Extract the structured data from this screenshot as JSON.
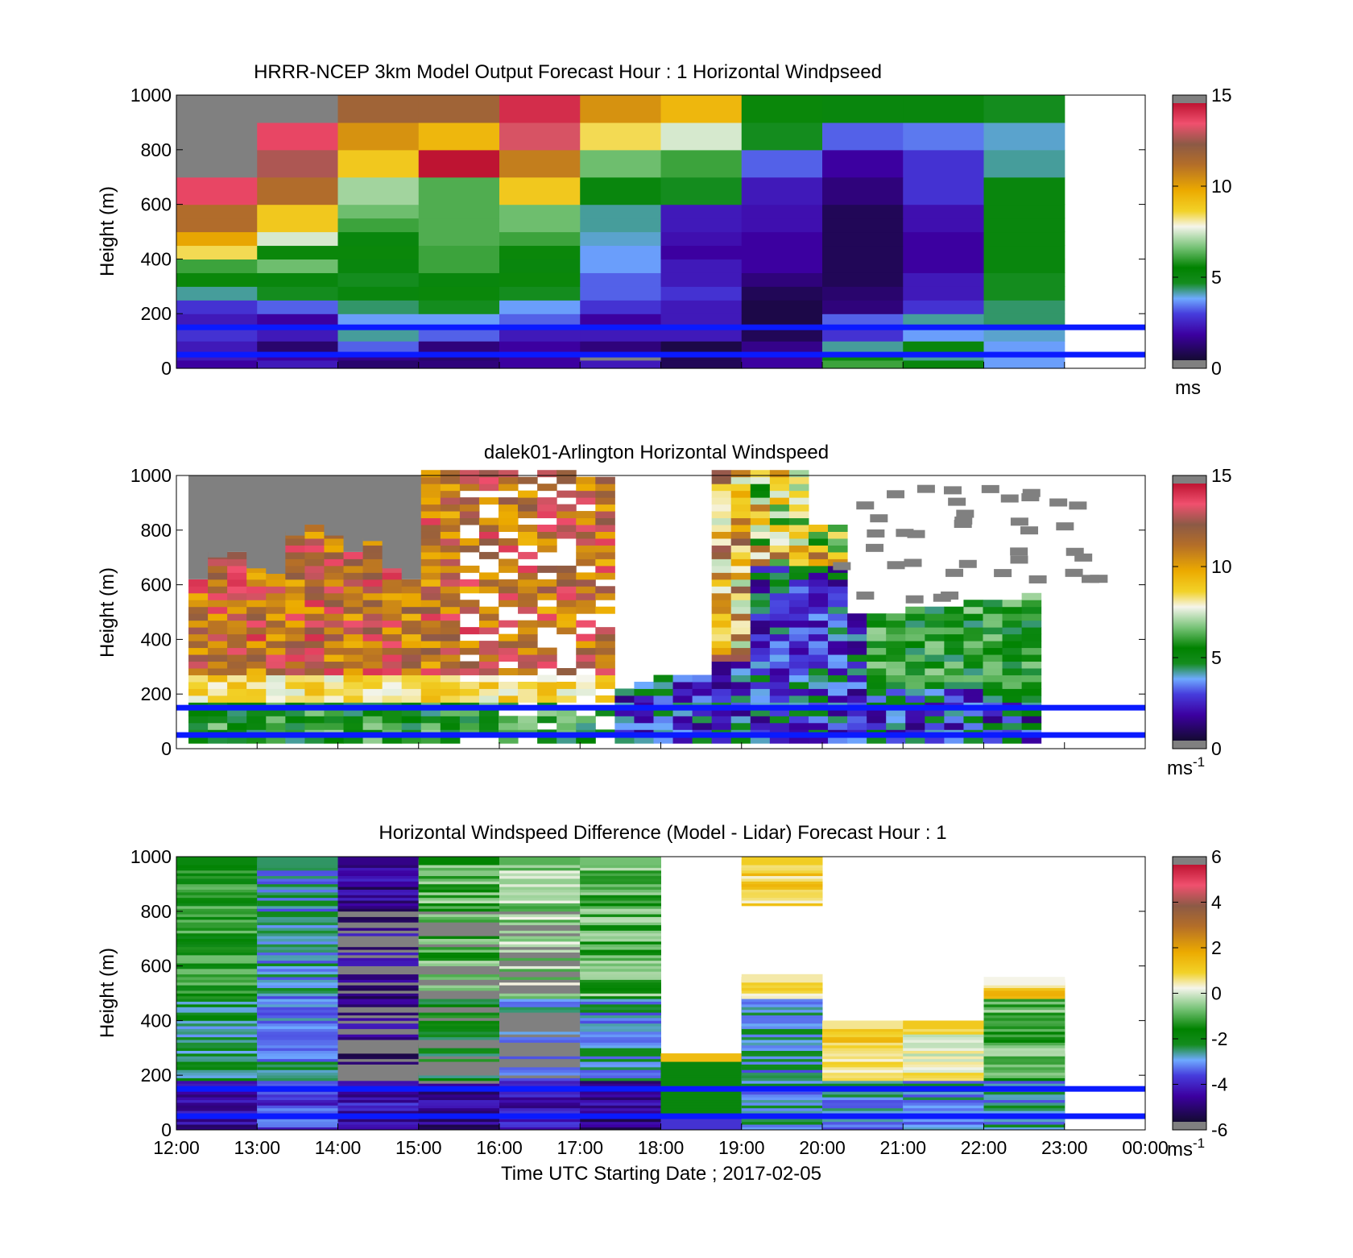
{
  "figure": {
    "xlabel": "Time UTC  Starting Date ; 2017-02-05",
    "x_ticks": [
      "12:00",
      "13:00",
      "14:00",
      "15:00",
      "16:00",
      "17:00",
      "18:00",
      "19:00",
      "20:00",
      "21:00",
      "22:00",
      "23:00",
      "00:00"
    ],
    "reference_heights_m": [
      150,
      50
    ],
    "reference_line_color": "#0a1aff"
  },
  "chart_data": [
    {
      "type": "heatmap",
      "title": "HRRR-NCEP 3km Model Output   Forecast Hour : 1 Horizontal Windpseed",
      "ylabel": "Height (m)",
      "ylim": [
        0,
        1000
      ],
      "y_ticks": [
        "1000",
        "800",
        "600",
        "400",
        "200",
        "0"
      ],
      "colorbar": {
        "range": [
          0,
          15
        ],
        "ticks": [
          "15",
          "10",
          "5",
          "0"
        ],
        "unit": "ms",
        "unit_sup": ""
      },
      "x": [
        "12:00",
        "13:00",
        "14:00",
        "15:00",
        "16:00",
        "17:00",
        "18:00",
        "19:00",
        "20:00",
        "21:00",
        "22:00"
      ],
      "y_edges": [
        0,
        30,
        60,
        100,
        150,
        200,
        250,
        300,
        350,
        400,
        450,
        500,
        550,
        600,
        700,
        800,
        900,
        1000
      ],
      "z": [
        [
          1.5,
          2,
          0.8,
          1,
          1.5,
          2,
          0.5,
          1.5,
          6,
          5,
          3.5
        ],
        [
          2,
          1.5,
          1.2,
          0.8,
          1.5,
          0,
          0.5,
          1.5,
          5,
          4,
          3.5
        ],
        [
          2,
          0.8,
          3,
          1,
          1.5,
          1,
          0.3,
          1.2,
          4,
          5,
          3.5
        ],
        [
          2.5,
          2,
          4,
          3,
          2,
          2,
          2,
          0.5,
          2.5,
          3.5,
          3.8
        ],
        [
          2,
          1.5,
          3.5,
          3.5,
          3,
          1.5,
          2,
          0.3,
          3,
          4,
          4.2
        ],
        [
          2.5,
          3,
          4.2,
          4.5,
          3.5,
          2.5,
          2,
          0.3,
          1,
          2.5,
          4.2
        ],
        [
          4,
          4.5,
          5,
          5.5,
          4.5,
          3,
          2.5,
          0.5,
          0.8,
          2,
          4.5
        ],
        [
          5.5,
          5,
          4.5,
          5,
          5.5,
          3,
          2,
          1,
          0.5,
          2,
          4.5
        ],
        [
          6,
          6.5,
          5,
          6,
          5,
          3.5,
          2,
          1.5,
          0.5,
          1.5,
          5
        ],
        [
          8.5,
          5.5,
          5.5,
          6,
          5.5,
          3.5,
          1.5,
          1.5,
          0.5,
          1.5,
          5
        ],
        [
          10,
          7.5,
          5,
          6.2,
          6,
          3.8,
          1.8,
          1.5,
          0.5,
          1.5,
          5
        ],
        [
          11.5,
          9,
          6,
          6.2,
          6.5,
          4,
          2,
          1.8,
          0.5,
          1.8,
          5
        ],
        [
          11.5,
          9,
          6.5,
          6.2,
          6.5,
          4,
          2,
          1.8,
          0.5,
          1.8,
          5
        ],
        [
          14,
          11.5,
          7,
          6.2,
          9,
          5,
          4.5,
          2,
          1,
          2.5,
          5
        ],
        [
          0,
          13,
          9,
          15,
          11,
          6.5,
          6,
          3,
          1.5,
          2.5,
          4
        ],
        [
          0,
          14,
          10.5,
          9.5,
          13.5,
          8.5,
          7.5,
          4.5,
          3,
          3.2,
          3.8
        ],
        [
          0,
          0,
          12,
          12,
          14.5,
          10.5,
          9.5,
          5.5,
          5,
          5,
          4.5
        ]
      ]
    },
    {
      "type": "heatmap",
      "title": "dalek01-Arlington  Horizontal Windspeed",
      "ylabel": "Height (m)",
      "ylim": [
        0,
        1000
      ],
      "y_ticks": [
        "1000",
        "800",
        "600",
        "400",
        "200",
        "0"
      ],
      "colorbar": {
        "range": [
          0,
          15
        ],
        "ticks": [
          "15",
          "10",
          "5",
          "0"
        ],
        "unit": "ms",
        "unit_sup": "-1"
      },
      "x_start_hour": 12,
      "x_step_hours": 0.25,
      "y_start": 20,
      "y_step": 25
    },
    {
      "type": "heatmap",
      "title": "Horizontal Windspeed Difference (Model - Lidar) Forecast Hour : 1",
      "ylabel": "Height (m)",
      "ylim": [
        0,
        1000
      ],
      "y_ticks": [
        "1000",
        "800",
        "600",
        "400",
        "200",
        "0"
      ],
      "colorbar": {
        "range": [
          -6,
          6
        ],
        "ticks": [
          "6",
          "4",
          "2",
          "0",
          "-2",
          "-4",
          "-6"
        ],
        "unit": "ms",
        "unit_sup": "-1"
      },
      "x": [
        "12:00",
        "13:00",
        "14:00",
        "15:00",
        "16:00",
        "17:00",
        "18:00",
        "19:00",
        "20:00",
        "21:00",
        "22:00"
      ],
      "y_start": 20,
      "y_step": 25
    }
  ]
}
